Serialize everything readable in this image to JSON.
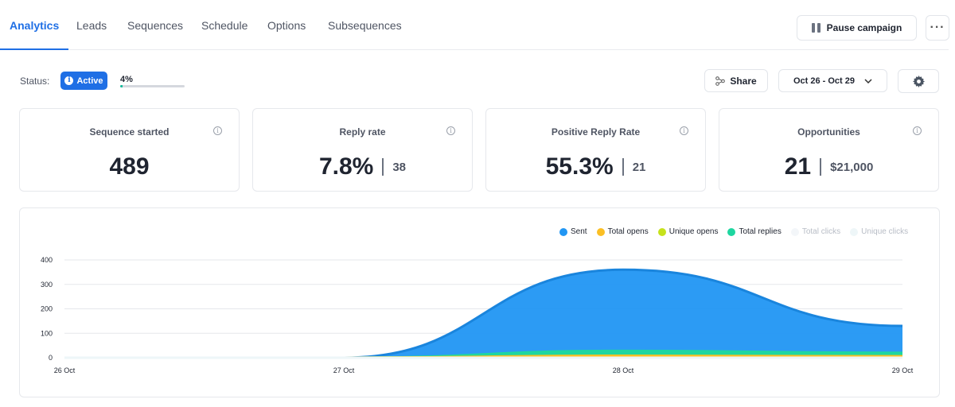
{
  "tabs": [
    {
      "label": "Analytics",
      "active": true
    },
    {
      "label": "Leads",
      "active": false
    },
    {
      "label": "Sequences",
      "active": false
    },
    {
      "label": "Schedule",
      "active": false
    },
    {
      "label": "Options",
      "active": false
    },
    {
      "label": "Subsequences",
      "active": false
    }
  ],
  "header": {
    "pause_label": "Pause campaign",
    "more_label": "···"
  },
  "status": {
    "label": "Status:",
    "badge": "Active",
    "progress_label": "4%",
    "progress": 0.04
  },
  "toolbar": {
    "share_label": "Share",
    "date_range": "Oct 26 - Oct 29"
  },
  "cards": [
    {
      "title": "Sequence started",
      "value": "489",
      "sub": ""
    },
    {
      "title": "Reply rate",
      "value": "7.8%",
      "sub": "38"
    },
    {
      "title": "Positive Reply Rate",
      "value": "55.3%",
      "sub": "21"
    },
    {
      "title": "Opportunities",
      "value": "21",
      "sub": "$21,000"
    }
  ],
  "colors": {
    "accent": "#1f6fe5",
    "sent": "#2196f3",
    "total_opens": "#fbbf24",
    "unique_opens": "#c6e21b",
    "total_replies": "#1ed6a0",
    "total_clicks": "#f3f6f9",
    "unique_clicks": "#eef6f8"
  },
  "chart_data": {
    "type": "area",
    "x": [
      "26 Oct",
      "27 Oct",
      "28 Oct",
      "29 Oct"
    ],
    "ylim": [
      0,
      400
    ],
    "yticks": [
      "0",
      "100",
      "200",
      "300",
      "400"
    ],
    "grid": true,
    "legend_position": "top-right",
    "series": [
      {
        "name": "Sent",
        "values": [
          0,
          0,
          360,
          130
        ]
      },
      {
        "name": "Total opens",
        "values": [
          0,
          0,
          8,
          6
        ]
      },
      {
        "name": "Unique opens",
        "values": [
          0,
          0,
          6,
          5
        ]
      },
      {
        "name": "Total replies",
        "values": [
          0,
          0,
          28,
          20
        ]
      },
      {
        "name": "Total clicks",
        "values": [
          0,
          0,
          0,
          0
        ]
      },
      {
        "name": "Unique clicks",
        "values": [
          0,
          0,
          0,
          0
        ]
      }
    ]
  }
}
